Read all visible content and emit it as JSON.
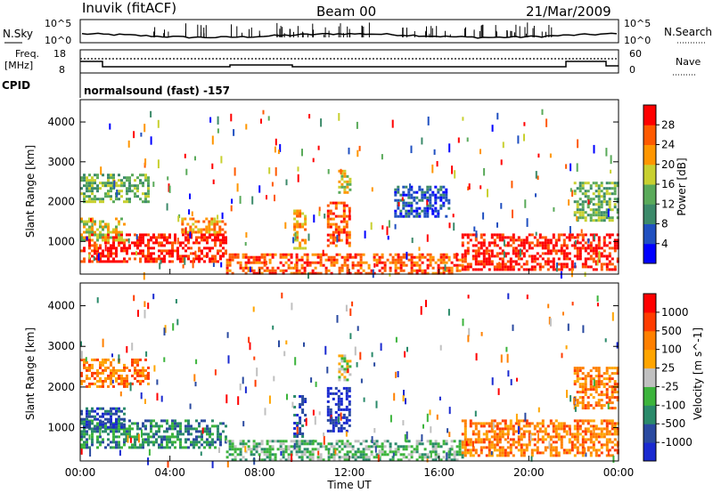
{
  "header": {
    "station": "Inuvik (fitACF)",
    "beam": "Beam 00",
    "date": "21/Mar/2009"
  },
  "noise_panel": {
    "left_label": "N.Sky",
    "left_ticks": [
      "10^5",
      "10^0"
    ],
    "right_label": "N.Search",
    "right_ticks": [
      "10^5",
      "10^0"
    ]
  },
  "freq_panel": {
    "left_label_1": "Freq.",
    "left_label_2": "[MHz]",
    "left_ticks": [
      "18",
      "8"
    ],
    "right_label": "Nave",
    "right_ticks": [
      "60",
      "0"
    ]
  },
  "cpid_panel": {
    "label": "CPID",
    "text": "normalsound (fast) -157"
  },
  "colors": {
    "power": [
      "#0000ff",
      "#2050c0",
      "#3c8a6a",
      "#5aaa5a",
      "#c8d030",
      "#ff9600",
      "#ff5a00",
      "#ff0000"
    ],
    "velocity": [
      "#ff0000",
      "#ff3c00",
      "#ff8000",
      "#ffa500",
      "#c0c0c0",
      "#3cb43c",
      "#2a8a6a",
      "#2a4aa0",
      "#1a2ad0"
    ]
  },
  "chart_data": [
    {
      "type": "heatmap",
      "title": "",
      "ylabel": "Slant Range [km]",
      "xlabel": "",
      "x_tick_labels": [
        "00:00",
        "04:00",
        "08:00",
        "12:00",
        "16:00",
        "20:00",
        "00:00"
      ],
      "x_range_hours": [
        0,
        24
      ],
      "ylim": [
        180,
        4560
      ],
      "y_ticks": [
        1000,
        2000,
        3000,
        4000
      ],
      "colorbar": {
        "label": "Power [dB]",
        "ticks": [
          28,
          24,
          20,
          16,
          12,
          8,
          4
        ],
        "range": [
          0,
          30
        ]
      },
      "echo_regions": [
        {
          "t0": 0.0,
          "t1": 6.5,
          "r0": 500,
          "r1": 1200,
          "level": 7
        },
        {
          "t0": 0.0,
          "t1": 2.0,
          "r0": 1000,
          "r1": 1600,
          "level": 4
        },
        {
          "t0": 0.0,
          "t1": 3.0,
          "r0": 2000,
          "r1": 2700,
          "level": 3
        },
        {
          "t0": 4.5,
          "t1": 6.5,
          "r0": 1200,
          "r1": 1600,
          "level": 5
        },
        {
          "t0": 6.5,
          "t1": 17.0,
          "r0": 200,
          "r1": 700,
          "level": 6
        },
        {
          "t0": 9.5,
          "t1": 10.0,
          "r0": 800,
          "r1": 1800,
          "level": 5
        },
        {
          "t0": 11.0,
          "t1": 12.0,
          "r0": 900,
          "r1": 2000,
          "level": 6
        },
        {
          "t0": 11.5,
          "t1": 12.0,
          "r0": 2200,
          "r1": 2800,
          "level": 4
        },
        {
          "t0": 14.0,
          "t1": 16.5,
          "r0": 1600,
          "r1": 2400,
          "level": 1
        },
        {
          "t0": 17.0,
          "t1": 24.0,
          "r0": 300,
          "r1": 1200,
          "level": 7
        },
        {
          "t0": 22.0,
          "t1": 24.0,
          "r0": 1500,
          "r1": 2500,
          "level": 3
        }
      ]
    },
    {
      "type": "heatmap",
      "title": "",
      "ylabel": "Slant Range [km]",
      "xlabel": "Time UT",
      "x_tick_labels": [
        "00:00",
        "04:00",
        "08:00",
        "12:00",
        "16:00",
        "20:00",
        "00:00"
      ],
      "x_range_hours": [
        0,
        24
      ],
      "ylim": [
        180,
        4560
      ],
      "y_ticks": [
        1000,
        2000,
        3000,
        4000
      ],
      "colorbar": {
        "label": "Velocity [m s^-1]",
        "ticks": [
          "1000",
          "500",
          "100",
          "25",
          "-25",
          "-100",
          "-500",
          "-1000"
        ],
        "range": [
          -1000,
          1000
        ]
      },
      "echo_regions": [
        {
          "t0": 0.0,
          "t1": 6.5,
          "r0": 500,
          "r1": 1200,
          "level": 6
        },
        {
          "t0": 0.0,
          "t1": 3.0,
          "r0": 2000,
          "r1": 2700,
          "level": 2
        },
        {
          "t0": 0.0,
          "t1": 2.0,
          "r0": 1000,
          "r1": 1500,
          "level": 7
        },
        {
          "t0": 6.5,
          "t1": 17.0,
          "r0": 200,
          "r1": 700,
          "level": 5
        },
        {
          "t0": 9.5,
          "t1": 10.0,
          "r0": 800,
          "r1": 1800,
          "level": 7
        },
        {
          "t0": 11.0,
          "t1": 12.0,
          "r0": 900,
          "r1": 2000,
          "level": 8
        },
        {
          "t0": 11.5,
          "t1": 12.0,
          "r0": 2200,
          "r1": 2800,
          "level": 4
        },
        {
          "t0": 17.0,
          "t1": 24.0,
          "r0": 300,
          "r1": 1200,
          "level": 2
        },
        {
          "t0": 22.0,
          "t1": 24.0,
          "r0": 1500,
          "r1": 2500,
          "level": 2
        }
      ]
    }
  ]
}
